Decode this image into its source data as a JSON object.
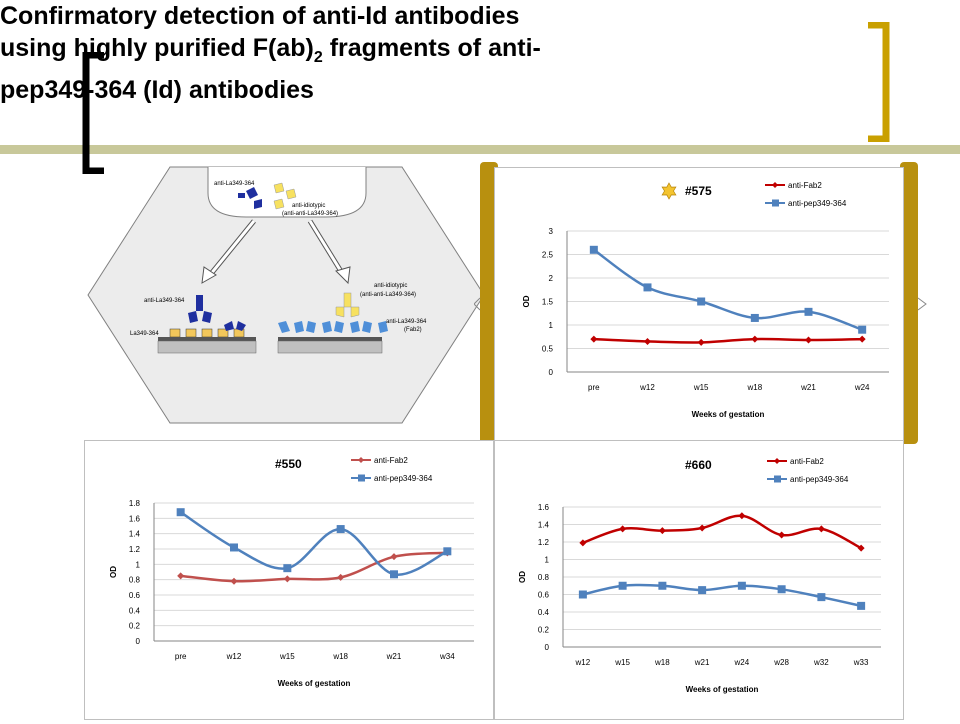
{
  "slide": {
    "title_line1": "Confirmatory detection of anti-Id antibodies",
    "title_line2a": "using highly purified F(ab)",
    "title_line2_sub": "2",
    "title_line2b": " fragments of anti-",
    "title_line3": "pep349-364 (Id) antibodies",
    "colors": {
      "olive_bar": "#c8c89a",
      "bracket_black": "#000000",
      "bracket_gold": "#c9a000",
      "frame_gold": "#b8900f"
    }
  },
  "diagram": {
    "top_antibody": "anti-La349-364",
    "top_antiid": "anti-idiotypic",
    "top_antiid2": "(anti-anti-La349-364)",
    "left_antibody": "anti-La349-364",
    "left_antigen": "La349-364",
    "right_antiid": "anti-idiotypic",
    "right_antiid2": "(anti-anti-La349-364)",
    "right_fab": "anti-La349-364",
    "right_fab2": "(Fab2)"
  },
  "chart_data": [
    {
      "type": "line",
      "title": "#575",
      "xlabel": "Weeks of gestation",
      "ylabel": "OD",
      "categories": [
        "pre",
        "w12",
        "w15",
        "w18",
        "w21",
        "w24"
      ],
      "ylim": [
        0,
        3
      ],
      "yticks": [
        "0",
        "0.5",
        "1",
        "1.5",
        "2",
        "2.5",
        "3"
      ],
      "series": [
        {
          "name": "anti-Fab2",
          "color": "#c00000",
          "marker": "diamond",
          "values": [
            0.7,
            0.65,
            0.63,
            0.7,
            0.68,
            0.7
          ]
        },
        {
          "name": "anti-pep349-364",
          "color": "#4f81bd",
          "marker": "square",
          "values": [
            2.6,
            1.8,
            1.5,
            1.15,
            1.28,
            0.9
          ]
        }
      ],
      "legend": "top-right"
    },
    {
      "type": "line",
      "title": "#550",
      "xlabel": "Weeks of gestation",
      "ylabel": "OD",
      "categories": [
        "pre",
        "w12",
        "w15",
        "w18",
        "w21",
        "w34"
      ],
      "ylim": [
        0,
        1.8
      ],
      "yticks": [
        "0",
        "0.2",
        "0.4",
        "0.6",
        "0.8",
        "1",
        "1.2",
        "1.4",
        "1.6",
        "1.8"
      ],
      "series": [
        {
          "name": "anti-Fab2",
          "color": "#c0504d",
          "marker": "diamond",
          "values": [
            0.85,
            0.78,
            0.81,
            0.83,
            1.1,
            1.15
          ]
        },
        {
          "name": "anti-pep349-364",
          "color": "#4f81bd",
          "marker": "square",
          "values": [
            1.68,
            1.22,
            0.95,
            1.46,
            0.87,
            1.17
          ]
        }
      ],
      "legend": "top-right"
    },
    {
      "type": "line",
      "title": "#660",
      "xlabel": "Weeks of gestation",
      "ylabel": "OD",
      "categories": [
        "w12",
        "w15",
        "w18",
        "w21",
        "w24",
        "w28",
        "w32",
        "w33"
      ],
      "ylim": [
        0,
        1.6
      ],
      "yticks": [
        "0",
        "0.2",
        "0.4",
        "0.6",
        "0.8",
        "1",
        "1.2",
        "1.4",
        "1.6"
      ],
      "series": [
        {
          "name": "anti-Fab2",
          "color": "#c00000",
          "marker": "diamond",
          "values": [
            1.19,
            1.35,
            1.33,
            1.36,
            1.5,
            1.28,
            1.35,
            1.13
          ]
        },
        {
          "name": "anti-pep349-364",
          "color": "#4f81bd",
          "marker": "square",
          "values": [
            0.6,
            0.7,
            0.7,
            0.65,
            0.7,
            0.66,
            0.57,
            0.47
          ]
        }
      ],
      "legend": "top-right"
    }
  ]
}
